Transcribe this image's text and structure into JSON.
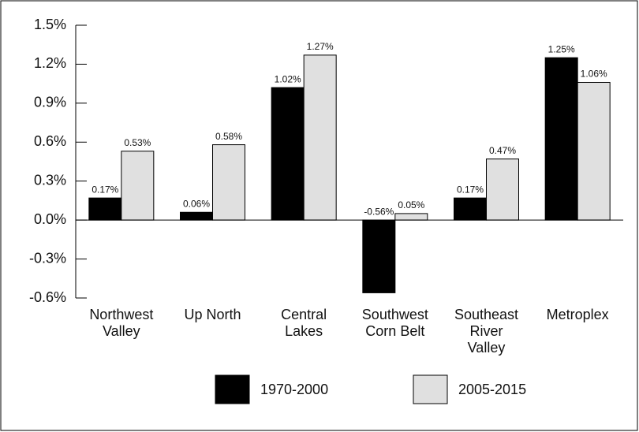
{
  "chart_data": {
    "type": "bar",
    "categories": [
      "Northwest\nValley",
      "Up North",
      "Central\nLakes",
      "Southwest\nCorn Belt",
      "Southeast\nRiver\nValley",
      "Metroplex"
    ],
    "series": [
      {
        "name": "1970-2000",
        "color": "#000000",
        "values": [
          0.17,
          0.06,
          1.02,
          -0.56,
          0.17,
          1.25
        ],
        "value_labels": [
          "0.17%",
          "0.06%",
          "1.02%",
          "-0.56%",
          "0.17%",
          "1.25%"
        ]
      },
      {
        "name": "2005-2015",
        "color": "#e0e0e0",
        "values": [
          0.53,
          0.58,
          1.27,
          0.05,
          0.47,
          1.06
        ],
        "value_labels": [
          "0.53%",
          "0.58%",
          "1.27%",
          "0.05%",
          "0.47%",
          "1.06%"
        ]
      }
    ],
    "ylim": [
      -0.6,
      1.5
    ],
    "yticks": [
      {
        "value": -0.6,
        "label": "-0.6%"
      },
      {
        "value": -0.3,
        "label": "-0.3%"
      },
      {
        "value": 0,
        "label": "0.0%"
      },
      {
        "value": 0.3,
        "label": "0.3%"
      },
      {
        "value": 0.6,
        "label": "0.6%"
      },
      {
        "value": 0.9,
        "label": "0.9%"
      },
      {
        "value": 1.2,
        "label": "1.2%"
      },
      {
        "value": 1.5,
        "label": "1.5%"
      }
    ],
    "legend": "bottom"
  }
}
